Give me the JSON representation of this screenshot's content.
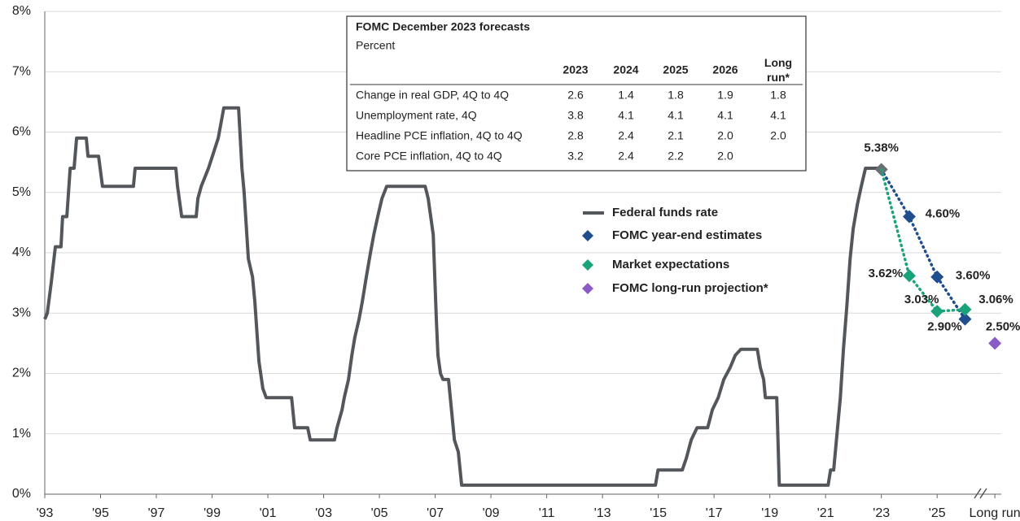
{
  "chart_data": {
    "type": "line",
    "xlim": [
      1993,
      2027.3
    ],
    "ylim": [
      0,
      8
    ],
    "yticks": [
      {
        "value": 0,
        "label": "0%"
      },
      {
        "value": 1,
        "label": "1%"
      },
      {
        "value": 2,
        "label": "2%"
      },
      {
        "value": 3,
        "label": "3%"
      },
      {
        "value": 4,
        "label": "4%"
      },
      {
        "value": 5,
        "label": "5%"
      },
      {
        "value": 6,
        "label": "6%"
      },
      {
        "value": 7,
        "label": "7%"
      },
      {
        "value": 8,
        "label": "8%"
      }
    ],
    "xticks": [
      {
        "value": 1993,
        "label": "'93"
      },
      {
        "value": 1995,
        "label": "'95"
      },
      {
        "value": 1997,
        "label": "'97"
      },
      {
        "value": 1999,
        "label": "'99"
      },
      {
        "value": 2001,
        "label": "'01"
      },
      {
        "value": 2003,
        "label": "'03"
      },
      {
        "value": 2005,
        "label": "'05"
      },
      {
        "value": 2007,
        "label": "'07"
      },
      {
        "value": 2009,
        "label": "'09"
      },
      {
        "value": 2011,
        "label": "'11"
      },
      {
        "value": 2013,
        "label": "'13"
      },
      {
        "value": 2015,
        "label": "'15"
      },
      {
        "value": 2017,
        "label": "'17"
      },
      {
        "value": 2019,
        "label": "'19"
      },
      {
        "value": 2021,
        "label": "'21"
      },
      {
        "value": 2023,
        "label": "'23"
      },
      {
        "value": 2025,
        "label": "'25"
      },
      {
        "value": 2027.07,
        "label": "Long run"
      }
    ],
    "grid": true,
    "series": [
      {
        "name": "Federal funds rate",
        "color": "#53575b",
        "style": "line",
        "x": [
          1993.0,
          1993.09,
          1993.23,
          1993.38,
          1993.58,
          1993.64,
          1993.79,
          1993.91,
          1994.05,
          1994.14,
          1994.49,
          1994.55,
          1994.93,
          1995.07,
          1996.18,
          1996.24,
          1997.7,
          1997.76,
          1997.91,
          1998.43,
          1998.49,
          1998.61,
          1998.87,
          1999.01,
          1999.22,
          1999.42,
          1999.95,
          2000.07,
          2000.15,
          2000.3,
          2000.45,
          2000.53,
          2000.68,
          2000.82,
          2000.94,
          2001.85,
          2001.96,
          2002.43,
          2002.52,
          2003.39,
          2003.48,
          2003.66,
          2003.74,
          2003.89,
          2004.01,
          2004.12,
          2004.27,
          2004.39,
          2004.53,
          2004.68,
          2004.8,
          2004.94,
          2005.09,
          2005.26,
          2006.64,
          2006.75,
          2006.84,
          2006.93,
          2007.04,
          2007.1,
          2007.19,
          2007.28,
          2007.48,
          2007.69,
          2007.83,
          2007.95,
          2014.9,
          2014.99,
          2015.86,
          2016.01,
          2016.18,
          2016.39,
          2016.77,
          2016.94,
          2017.15,
          2017.35,
          2017.58,
          2017.76,
          2017.96,
          2018.55,
          2018.66,
          2018.78,
          2018.84,
          2019.25,
          2019.34,
          2021.09,
          2021.18,
          2021.29,
          2021.41,
          2021.53,
          2021.64,
          2021.76,
          2021.88,
          2021.99,
          2022.14,
          2022.28,
          2022.43,
          2022.87,
          2023.0
        ],
        "values": [
          2.9,
          3.0,
          3.5,
          4.1,
          4.1,
          4.6,
          4.6,
          5.4,
          5.4,
          5.9,
          5.9,
          5.6,
          5.6,
          5.1,
          5.1,
          5.4,
          5.4,
          5.1,
          4.6,
          4.6,
          4.9,
          5.1,
          5.4,
          5.6,
          5.9,
          6.4,
          6.4,
          5.4,
          5.0,
          3.9,
          3.6,
          3.2,
          2.2,
          1.75,
          1.6,
          1.6,
          1.1,
          1.1,
          0.9,
          0.9,
          1.1,
          1.4,
          1.6,
          1.9,
          2.3,
          2.6,
          2.9,
          3.2,
          3.6,
          4.0,
          4.3,
          4.6,
          4.9,
          5.1,
          5.1,
          4.9,
          4.6,
          4.3,
          2.9,
          2.3,
          2.0,
          1.9,
          1.9,
          0.9,
          0.7,
          0.15,
          0.15,
          0.4,
          0.4,
          0.6,
          0.9,
          1.1,
          1.1,
          1.4,
          1.6,
          1.9,
          2.1,
          2.3,
          2.4,
          2.4,
          2.1,
          1.9,
          1.6,
          1.6,
          0.15,
          0.15,
          0.4,
          0.4,
          1.0,
          1.6,
          2.4,
          3.1,
          3.9,
          4.4,
          4.8,
          5.1,
          5.4,
          5.4,
          5.38
        ]
      },
      {
        "name": "FOMC year-end estimates",
        "color": "#1f4e8c",
        "style": "dotted-markers",
        "x": [
          2023,
          2024,
          2025,
          2026
        ],
        "values": [
          5.38,
          4.6,
          3.6,
          2.9
        ],
        "value_labels": [
          "5.38%",
          "4.60%",
          "3.60%",
          "2.90%"
        ]
      },
      {
        "name": "Market expectations",
        "color": "#1aa37a",
        "style": "dotted-markers",
        "x": [
          2023,
          2024,
          2025,
          2026
        ],
        "values": [
          5.38,
          3.62,
          3.03,
          3.06
        ],
        "value_labels": [
          null,
          "3.62%",
          "3.03%",
          "3.06%"
        ]
      },
      {
        "name": "FOMC long-run projection*",
        "color": "#8b5cc7",
        "style": "markers",
        "x": [
          2027.07
        ],
        "values": [
          2.5
        ],
        "value_labels": [
          "2.50%"
        ]
      }
    ],
    "table": {
      "title": "FOMC December 2023 forecasts",
      "subtitle": "Percent",
      "columns": [
        "2023",
        "2024",
        "2025",
        "2026",
        "Long run*"
      ],
      "rows": [
        {
          "label": "Change in real GDP, 4Q to 4Q",
          "values": [
            "2.6",
            "1.4",
            "1.8",
            "1.9",
            "1.8"
          ]
        },
        {
          "label": "Unemployment rate, 4Q",
          "values": [
            "3.8",
            "4.1",
            "4.1",
            "4.1",
            "4.1"
          ]
        },
        {
          "label": "Headline PCE inflation, 4Q to 4Q",
          "values": [
            "2.8",
            "2.4",
            "2.1",
            "2.0",
            "2.0"
          ]
        },
        {
          "label": "Core PCE inflation, 4Q to 4Q",
          "values": [
            "3.2",
            "2.4",
            "2.2",
            "2.0",
            null
          ]
        }
      ]
    }
  }
}
